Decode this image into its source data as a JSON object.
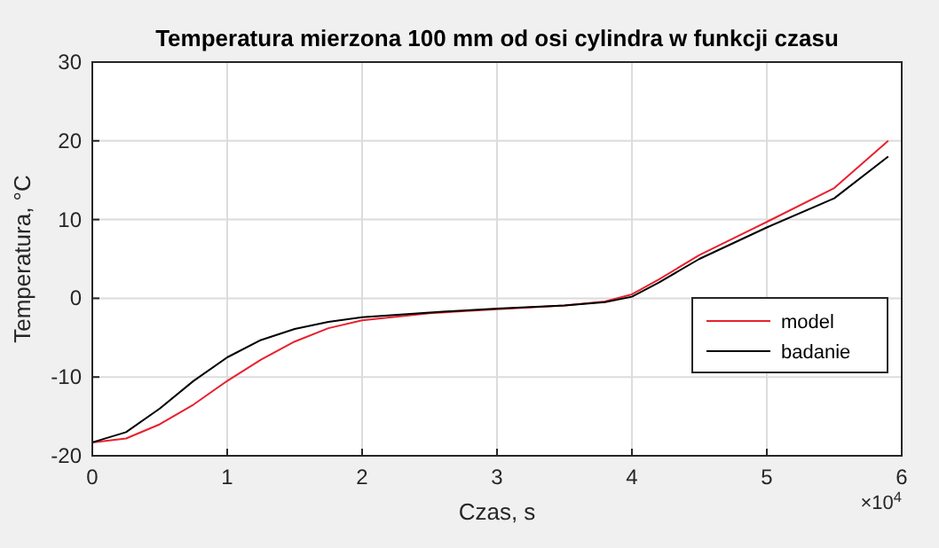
{
  "chart_data": {
    "type": "line",
    "title": "Temperatura mierzona 100 mm od osi cylindra w funkcji czasu",
    "xlabel": "Czas, s",
    "ylabel": "Temperatura, °C",
    "annotations": [
      "×10$^{4}$"
    ],
    "x": [
      0,
      0.25,
      0.5,
      0.75,
      1,
      1.25,
      1.5,
      1.75,
      2,
      2.5,
      3,
      3.5,
      3.8,
      4,
      4.2,
      4.5,
      5,
      5.5,
      5.9
    ],
    "series": [
      {
        "name": "model",
        "color": "#e8212e",
        "values": [
          -18.3,
          -17.8,
          -16,
          -13.5,
          -10.5,
          -7.8,
          -5.5,
          -3.8,
          -2.8,
          -1.9,
          -1.4,
          -0.9,
          -0.4,
          0.5,
          2.4,
          5.5,
          9.7,
          14,
          20
        ]
      },
      {
        "name": "badanie",
        "color": "#000000",
        "values": [
          -18.3,
          -17,
          -14,
          -10.5,
          -7.5,
          -5.3,
          -3.9,
          -3,
          -2.4,
          -1.8,
          -1.3,
          -0.9,
          -0.5,
          0.2,
          2,
          5,
          9,
          12.7,
          18
        ]
      }
    ],
    "xlim": [
      0,
      6
    ],
    "xticks": [
      0,
      1,
      2,
      3,
      4,
      5,
      6
    ],
    "ylim": [
      -20,
      30
    ],
    "yticks": [
      -20,
      -10,
      0,
      10,
      20,
      30
    ],
    "grid": true,
    "legend": "right"
  }
}
